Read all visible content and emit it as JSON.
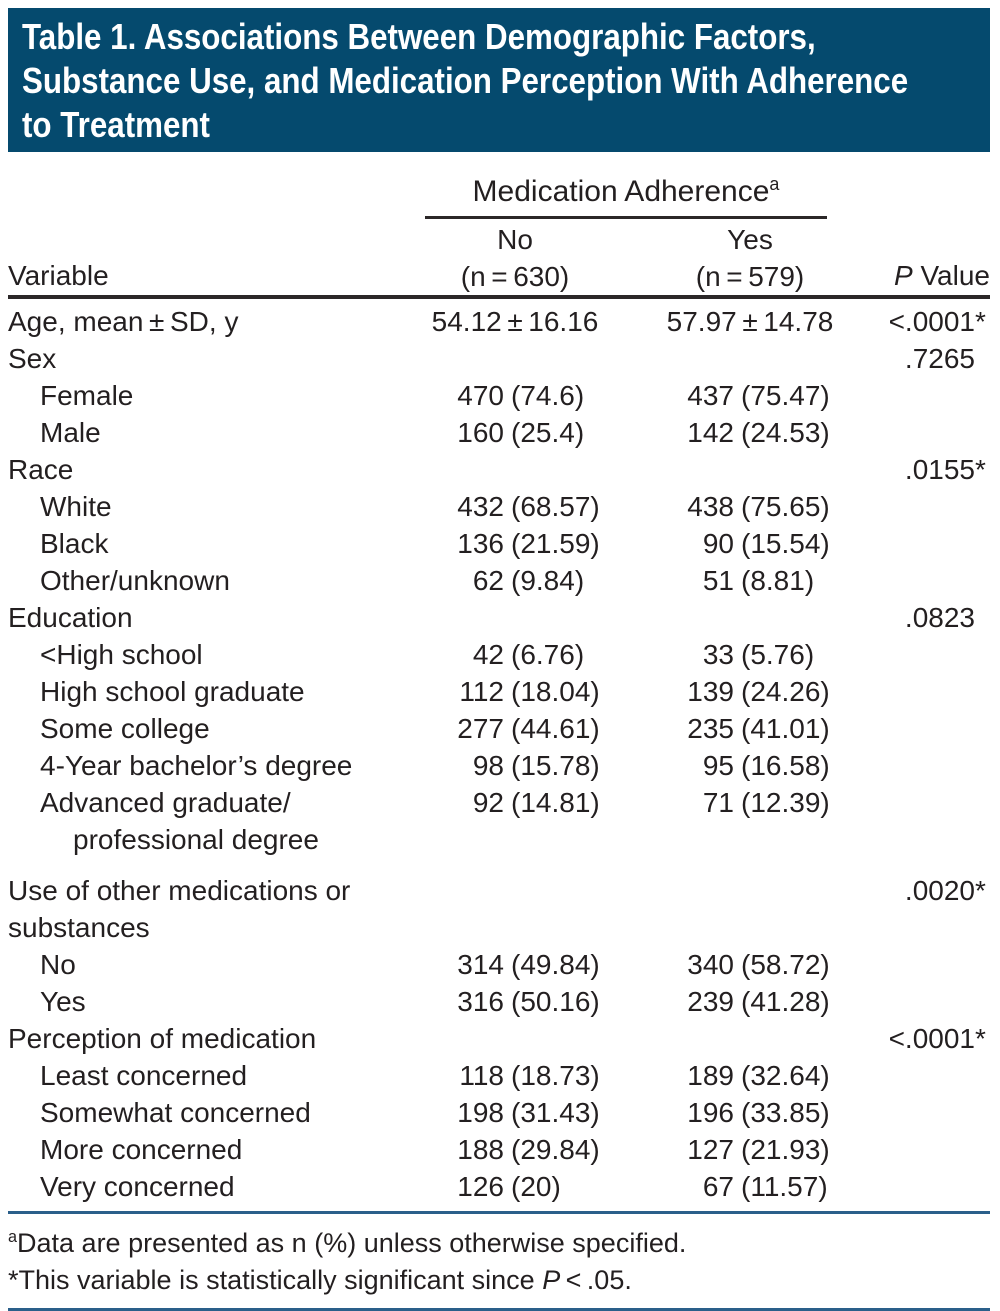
{
  "colors": {
    "banner_bg": "#054a6e",
    "banner_text": "#ffffff",
    "text": "#231f20",
    "rule_dark": "#2b2728",
    "rule_blue": "#2a5f8a"
  },
  "title": {
    "lines": [
      "Table 1. Associations Between Demographic Factors,",
      "Substance Use, and Medication Perception With Adherence",
      "to Treatment"
    ]
  },
  "table": {
    "spanner": {
      "label": "Medication Adherence",
      "sup": "a"
    },
    "columns": {
      "variable": "Variable",
      "no": {
        "line1": "No",
        "line2": "(n = 630)"
      },
      "yes": {
        "line1": "Yes",
        "line2": "(n = 579)"
      },
      "p": {
        "italic": "P",
        "rest": " Value"
      }
    },
    "star_symbol": "*",
    "rows": [
      {
        "label": "Age, mean ± SD, y",
        "no": "54.12 ± 16.16",
        "yes": "57.97 ± 14.78",
        "p": "<.0001",
        "star": true,
        "plain": true
      },
      {
        "label": "Sex",
        "p": ".7265"
      },
      {
        "label": "Female",
        "indent": 1,
        "no": "470 (74.6)",
        "yes": "437 (75.47)"
      },
      {
        "label": "Male",
        "indent": 1,
        "no": "160 (25.4)",
        "yes": "142 (24.53)"
      },
      {
        "label": "Race",
        "p": ".0155",
        "star": true
      },
      {
        "label": "White",
        "indent": 1,
        "no": "432 (68.57)",
        "yes": "438 (75.65)"
      },
      {
        "label": "Black",
        "indent": 1,
        "no": "136 (21.59)",
        "yes": "90 (15.54)"
      },
      {
        "label": "Other/unknown",
        "indent": 1,
        "no": "62 (9.84)",
        "yes": "51 (8.81)"
      },
      {
        "label": "Education",
        "p": ".0823"
      },
      {
        "label": "<High school",
        "indent": 1,
        "no": "42 (6.76)",
        "yes": "33 (5.76)"
      },
      {
        "label": "High school graduate",
        "indent": 1,
        "no": "112 (18.04)",
        "yes": "139 (24.26)"
      },
      {
        "label": "Some college",
        "indent": 1,
        "no": "277 (44.61)",
        "yes": "235 (41.01)"
      },
      {
        "label": "4-Year bachelor’s degree",
        "indent": 1,
        "no": "98 (15.78)",
        "yes": "95 (16.58)"
      },
      {
        "label": "Advanced graduate/",
        "label2": "professional degree",
        "indent": 1,
        "indent2": 2,
        "no": "92 (14.81)",
        "yes": "71 (12.39)"
      },
      {
        "label": "Use of other medications or",
        "label2": "substances",
        "p": ".0020",
        "star": true,
        "gap": true
      },
      {
        "label": "No",
        "indent": 1,
        "no": "314 (49.84)",
        "yes": "340 (58.72)"
      },
      {
        "label": "Yes",
        "indent": 1,
        "no": "316 (50.16)",
        "yes": "239 (41.28)"
      },
      {
        "label": "Perception of medication",
        "p": "<.0001",
        "star": true
      },
      {
        "label": "Least concerned",
        "indent": 1,
        "no": "118 (18.73)",
        "yes": "189 (32.64)"
      },
      {
        "label": "Somewhat concerned",
        "indent": 1,
        "no": "198 (31.43)",
        "yes": "196 (33.85)"
      },
      {
        "label": "More concerned",
        "indent": 1,
        "no": "188 (29.84)",
        "yes": "127 (21.93)"
      },
      {
        "label": "Very concerned",
        "indent": 1,
        "no": "126 (20)",
        "yes": "67 (11.57)"
      }
    ]
  },
  "footnotes": {
    "a": {
      "sup": "a",
      "text": "Data are presented as n (%) unless otherwise specified."
    },
    "star": {
      "prefix": "*This variable is statistically significant since ",
      "italic": "P",
      "suffix": " < .05."
    }
  }
}
